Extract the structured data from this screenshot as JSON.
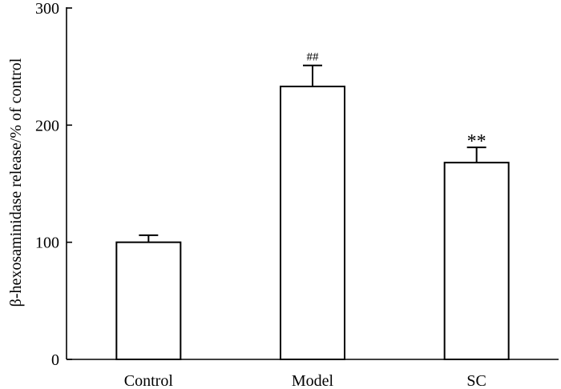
{
  "chart_data": {
    "type": "bar",
    "title": "",
    "xlabel": "",
    "ylabel": "β-hexosaminidase release/% of control",
    "ylim": [
      0,
      300
    ],
    "yticks": [
      0,
      100,
      200,
      300
    ],
    "grid": false,
    "categories": [
      "Control",
      "Model",
      "SC"
    ],
    "values": [
      100,
      233,
      168
    ],
    "errors": [
      6,
      18,
      13
    ],
    "annotations": [
      "",
      "##",
      "**"
    ]
  }
}
